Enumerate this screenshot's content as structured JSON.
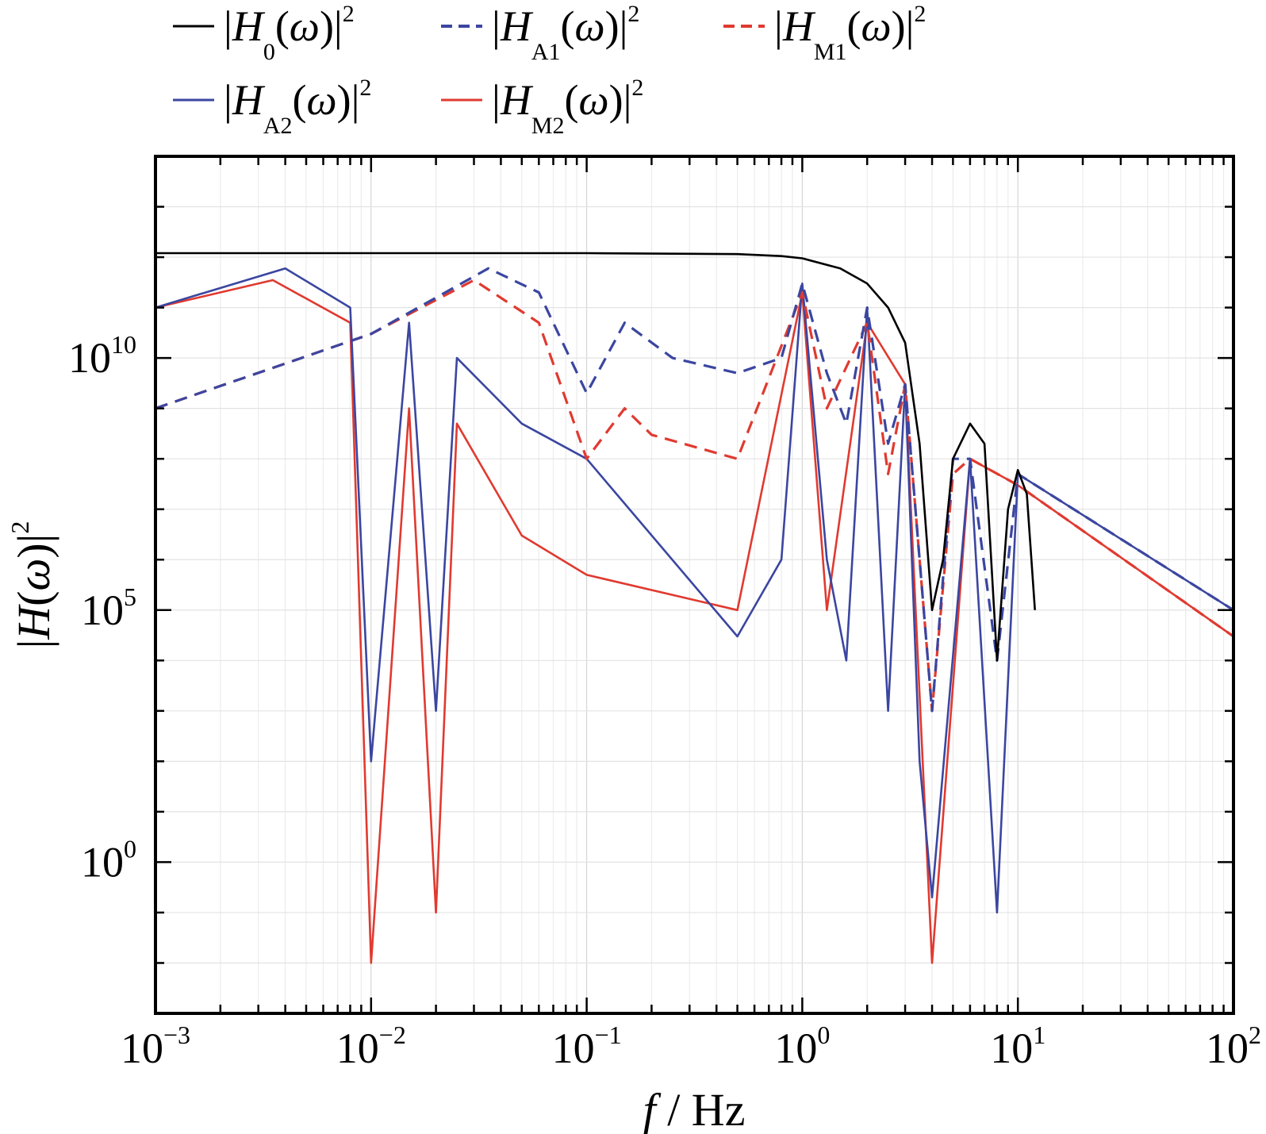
{
  "chart_data": {
    "type": "line",
    "xlabel": "f / Hz",
    "ylabel": "|H(ω)|2",
    "xscale": "log",
    "yscale": "log",
    "xlim": [
      0.001,
      100
    ],
    "ylim": [
      0.001,
      100000000000000.0
    ],
    "grid": true,
    "legend_position": "top",
    "x_ticks": [
      {
        "base": "10",
        "exp": "−3"
      },
      {
        "base": "10",
        "exp": "−2"
      },
      {
        "base": "10",
        "exp": "−1"
      },
      {
        "base": "10",
        "exp": "0"
      },
      {
        "base": "10",
        "exp": "1"
      },
      {
        "base": "10",
        "exp": "2"
      }
    ],
    "y_ticks": [
      {
        "base": "10",
        "exp": "0"
      },
      {
        "base": "10",
        "exp": "5"
      },
      {
        "base": "10",
        "exp": "10"
      }
    ],
    "series": [
      {
        "label_main": "|H",
        "label_sub": "0",
        "label_tail": "(ω)|",
        "label_sup": "2",
        "color": "#000000",
        "dash": false,
        "points": [
          [
            0.001,
            1200000000000.0
          ],
          [
            0.01,
            1200000000000.0
          ],
          [
            0.1,
            1200000000000.0
          ],
          [
            0.5,
            1150000000000.0
          ],
          [
            0.8,
            1050000000000.0
          ],
          [
            1.0,
            950000000000.0
          ],
          [
            1.5,
            600000000000.0
          ],
          [
            2,
            300000000000.0
          ],
          [
            2.5,
            100000000000.0
          ],
          [
            3,
            20000000000.0
          ],
          [
            3.5,
            200000000.0
          ],
          [
            4,
            100000.0
          ],
          [
            4.5,
            1000000.0
          ],
          [
            5,
            100000000.0
          ],
          [
            6,
            500000000.0
          ],
          [
            7,
            200000000.0
          ],
          [
            8,
            10000.0
          ],
          [
            9,
            10000000.0
          ],
          [
            10,
            60000000.0
          ],
          [
            11,
            20000000.0
          ],
          [
            12,
            100000.0
          ]
        ]
      },
      {
        "label_main": "|H",
        "label_sub": "A1",
        "label_tail": "(ω)|",
        "label_sup": "2",
        "color": "#3b46a0",
        "dash": true,
        "points": [
          [
            0.001,
            1000000000.0
          ],
          [
            0.01,
            30000000000.0
          ],
          [
            0.035,
            600000000000.0
          ],
          [
            0.06,
            200000000000.0
          ],
          [
            0.1,
            2000000000.0
          ],
          [
            0.15,
            50000000000.0
          ],
          [
            0.25,
            10000000000.0
          ],
          [
            0.5,
            5000000000.0
          ],
          [
            0.8,
            10000000000.0
          ],
          [
            1.0,
            300000000000.0
          ],
          [
            1.3,
            5000000000.0
          ],
          [
            1.6,
            500000000.0
          ],
          [
            2,
            100000000000.0
          ],
          [
            2.5,
            200000000.0
          ],
          [
            3,
            3000000000.0
          ],
          [
            3.5,
            1000000.0
          ],
          [
            4,
            1000.0
          ],
          [
            5,
            100000000.0
          ],
          [
            6,
            100000000.0
          ],
          [
            8,
            10000.0
          ],
          [
            10,
            50000000.0
          ],
          [
            100,
            100000.0
          ]
        ]
      },
      {
        "label_main": "|H",
        "label_sub": "M1",
        "label_tail": "(ω)|",
        "label_sup": "2",
        "color": "#e03a30",
        "dash": true,
        "points": [
          [
            0.001,
            1000000000.0
          ],
          [
            0.01,
            30000000000.0
          ],
          [
            0.03,
            350000000000.0
          ],
          [
            0.06,
            50000000000.0
          ],
          [
            0.1,
            100000000.0
          ],
          [
            0.15,
            1000000000.0
          ],
          [
            0.2,
            300000000.0
          ],
          [
            0.5,
            100000000.0
          ],
          [
            1.0,
            200000000000.0
          ],
          [
            1.3,
            1000000000.0
          ],
          [
            2,
            50000000000.0
          ],
          [
            2.5,
            50000000.0
          ],
          [
            3,
            3000000000.0
          ],
          [
            3.5,
            1000000.0
          ],
          [
            4,
            1000.0
          ],
          [
            5,
            50000000.0
          ],
          [
            6,
            100000000.0
          ],
          [
            10,
            30000000.0
          ],
          [
            100,
            30000.0
          ]
        ]
      },
      {
        "label_main": "|H",
        "label_sub": "A2",
        "label_tail": "(ω)|",
        "label_sup": "2",
        "color": "#3b46a0",
        "dash": false,
        "points": [
          [
            0.001,
            100000000000.0
          ],
          [
            0.004,
            600000000000.0
          ],
          [
            0.008,
            100000000000.0
          ],
          [
            0.01,
            100.0
          ],
          [
            0.015,
            50000000000.0
          ],
          [
            0.02,
            1000.0
          ],
          [
            0.025,
            10000000000.0
          ],
          [
            0.05,
            500000000.0
          ],
          [
            0.1,
            100000000.0
          ],
          [
            0.5,
            30000.0
          ],
          [
            0.8,
            1000000.0
          ],
          [
            1.0,
            300000000000.0
          ],
          [
            1.3,
            1000000.0
          ],
          [
            1.6,
            10000.0
          ],
          [
            2,
            100000000000.0
          ],
          [
            2.5,
            1000.0
          ],
          [
            3,
            3000000000.0
          ],
          [
            3.5,
            100.0
          ],
          [
            4,
            0.2
          ],
          [
            6,
            100000000.0
          ],
          [
            8,
            0.1
          ],
          [
            10,
            50000000.0
          ],
          [
            100,
            100000.0
          ]
        ]
      },
      {
        "label_main": "|H",
        "label_sub": "M2",
        "label_tail": "(ω)|",
        "label_sup": "2",
        "color": "#e03a30",
        "dash": false,
        "points": [
          [
            0.001,
            100000000000.0
          ],
          [
            0.0035,
            350000000000.0
          ],
          [
            0.008,
            50000000000.0
          ],
          [
            0.01,
            0.01
          ],
          [
            0.015,
            1000000000.0
          ],
          [
            0.02,
            0.1
          ],
          [
            0.025,
            500000000.0
          ],
          [
            0.05,
            3000000.0
          ],
          [
            0.1,
            500000.0
          ],
          [
            0.5,
            100000.0
          ],
          [
            1.0,
            200000000000.0
          ],
          [
            1.3,
            100000.0
          ],
          [
            2,
            50000000000.0
          ],
          [
            3,
            3000000000.0
          ],
          [
            4,
            0.01
          ],
          [
            6,
            100000000.0
          ],
          [
            10,
            30000000.0
          ],
          [
            100,
            30000.0
          ]
        ]
      }
    ]
  }
}
